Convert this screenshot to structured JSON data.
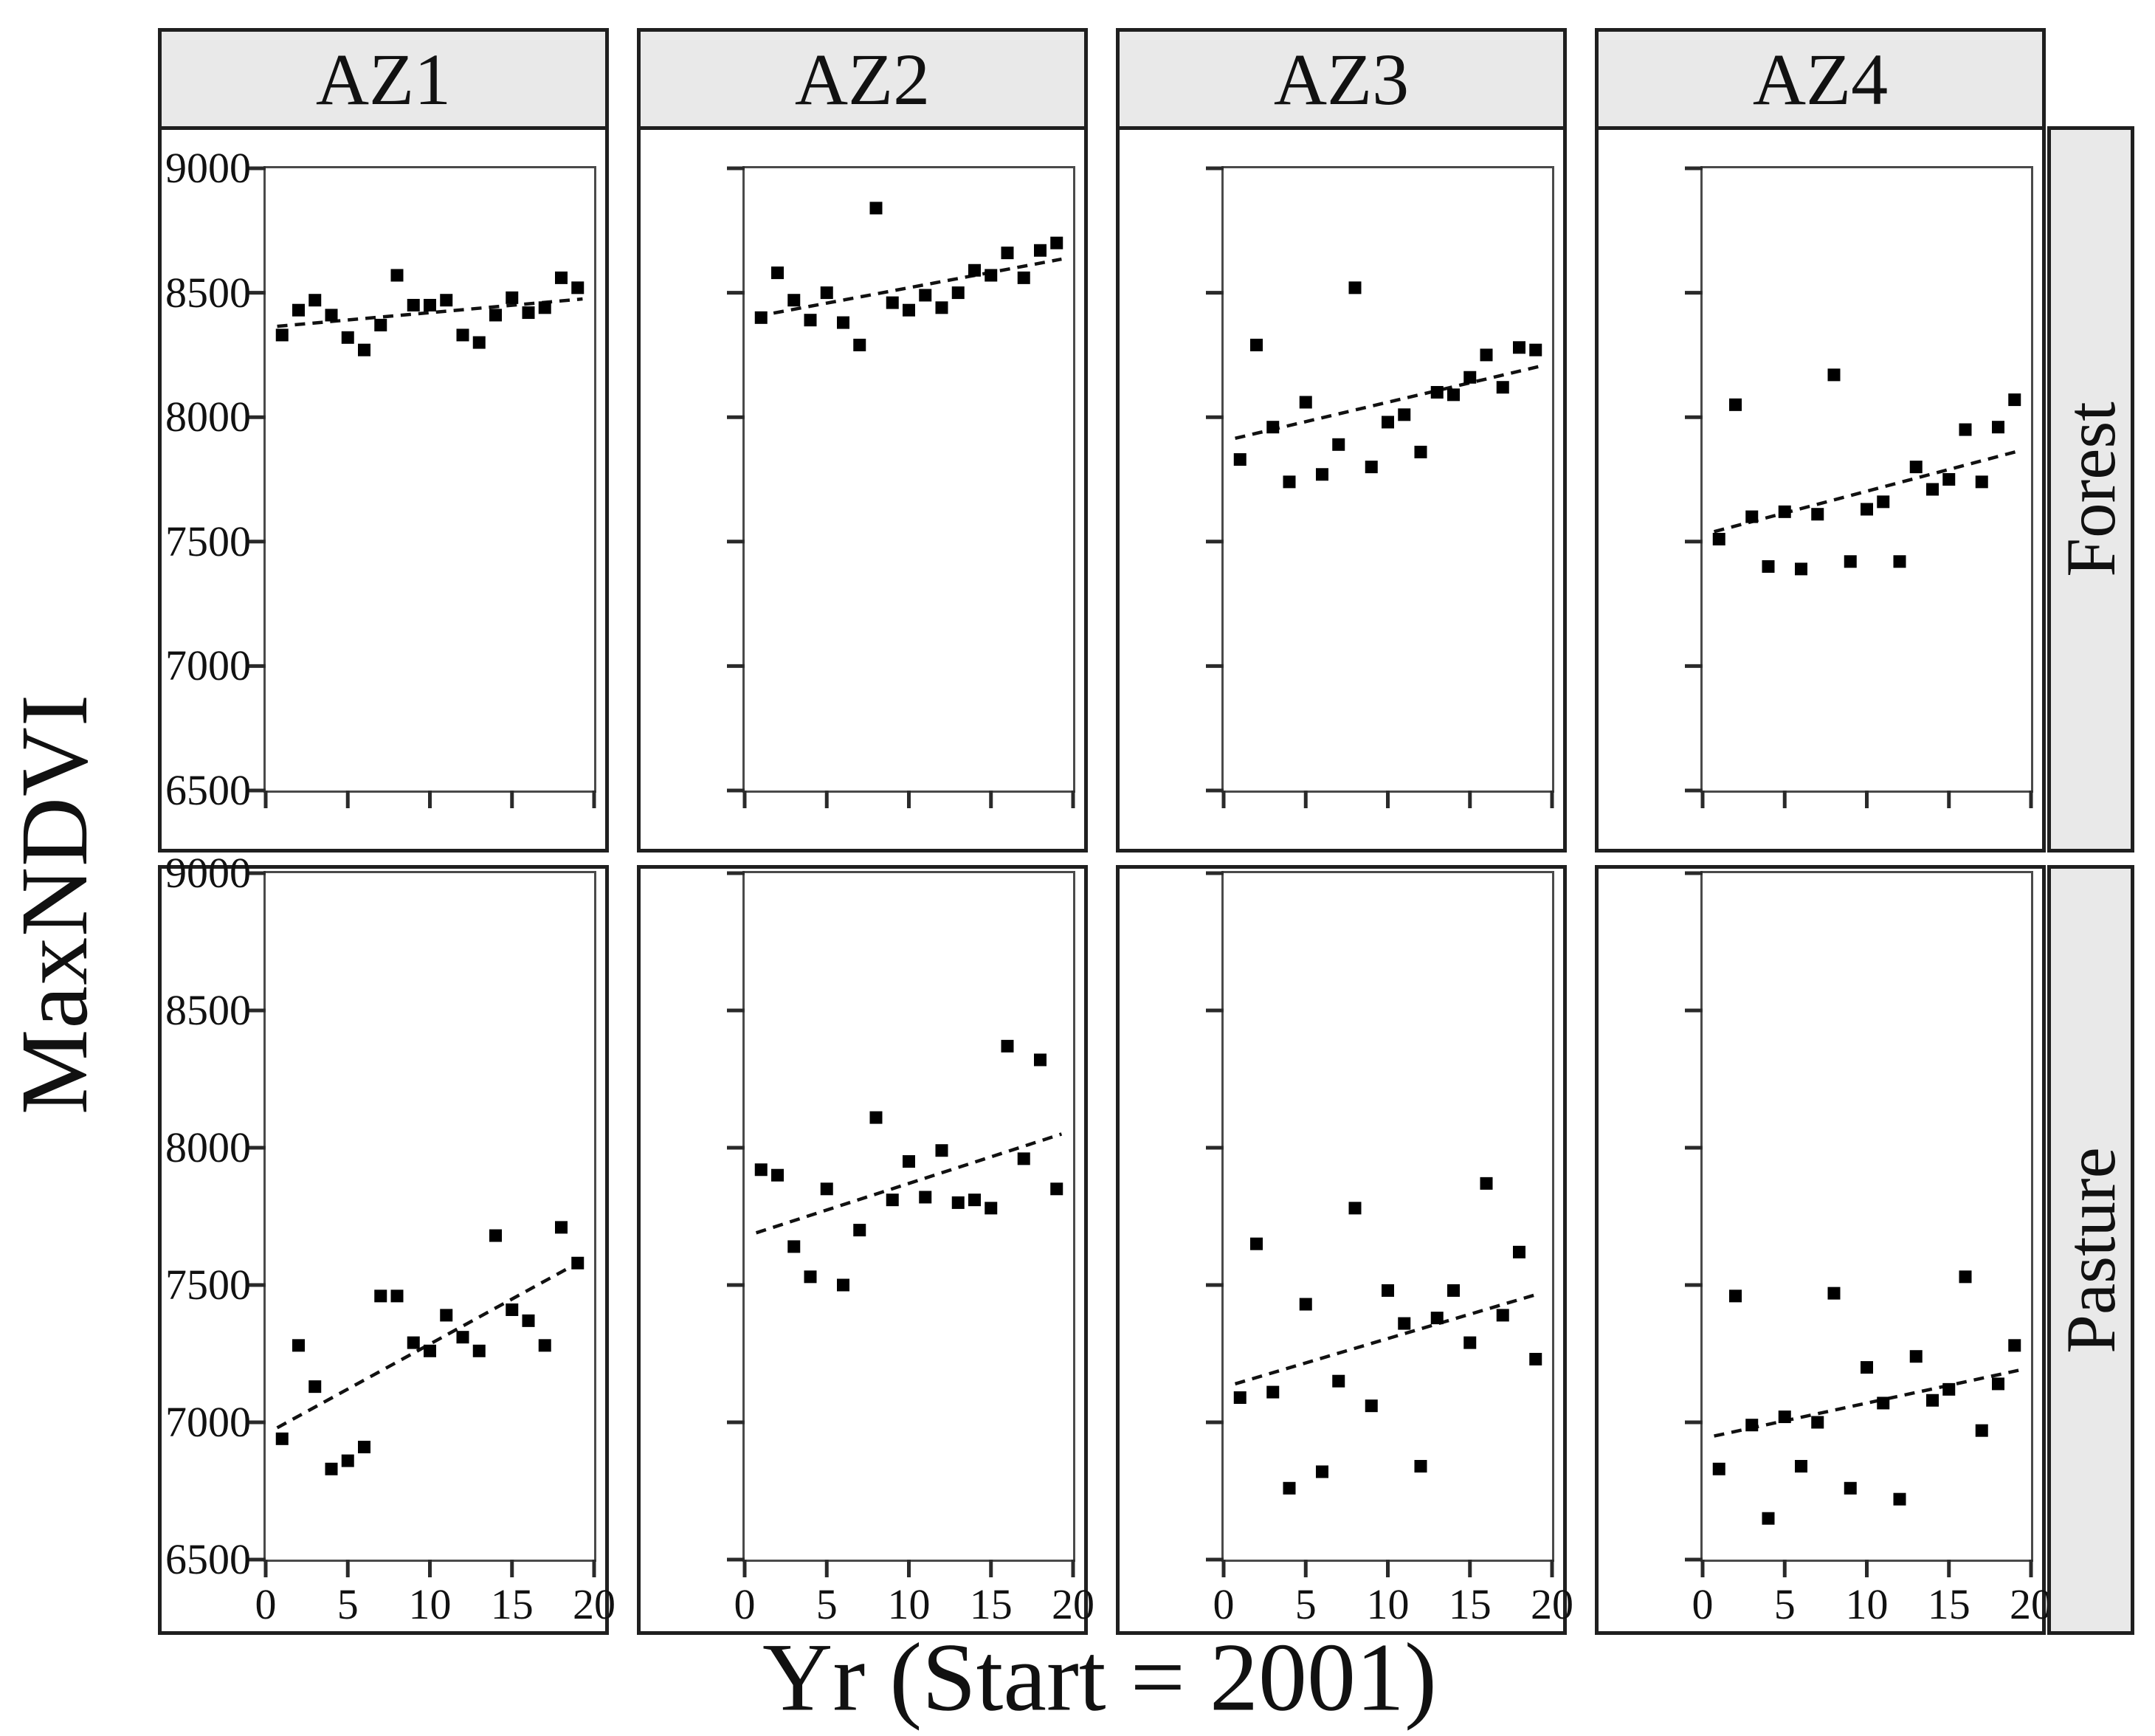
{
  "figure": {
    "y_axis_title": "MaxNDVI",
    "x_axis_title": "Yr (Start = 2001)",
    "columns": [
      "AZ1",
      "AZ2",
      "AZ3",
      "AZ4"
    ],
    "rows": [
      "Forest",
      "Pasture"
    ],
    "y_tick_labels": [
      "9000",
      "8500",
      "8000",
      "7500",
      "7000",
      "6500"
    ],
    "x_tick_labels": [
      "0",
      "5",
      "10",
      "15",
      "20"
    ],
    "colors": {
      "strip_bg": "#e9e9e9",
      "box_border": "#1f1f1f",
      "frame_border": "#4a4a4a",
      "point": "#000000",
      "trend_line": "#111111",
      "tick": "#2a2a2a"
    }
  },
  "chart_data": {
    "type": "scatter",
    "title": "",
    "xlabel": "Yr (Start = 2001)",
    "ylabel": "MaxNDVI",
    "x_range": [
      0,
      20
    ],
    "y_range": [
      6500,
      9000
    ],
    "x_ticks": [
      0,
      5,
      10,
      15,
      20
    ],
    "y_ticks": [
      9000,
      8500,
      8000,
      7500,
      7000,
      6500
    ],
    "grid": "off",
    "marker": "black-square",
    "trend_style": "dashed",
    "x_values": [
      1,
      2,
      3,
      4,
      5,
      6,
      7,
      8,
      9,
      10,
      11,
      12,
      13,
      14,
      15,
      16,
      17,
      18,
      19
    ],
    "panels": [
      {
        "row": "Forest",
        "column": "AZ1",
        "y_values": [
          8330,
          8430,
          8470,
          8410,
          8320,
          8270,
          8370,
          8570,
          8450,
          8450,
          8470,
          8330,
          8300,
          8410,
          8480,
          8420,
          8440,
          8560,
          8520
        ],
        "trend": {
          "x1": 0.7,
          "y1": 8365,
          "x2": 19.3,
          "y2": 8475
        }
      },
      {
        "row": "Forest",
        "column": "AZ2",
        "y_values": [
          8400,
          8580,
          8470,
          8390,
          8500,
          8380,
          8290,
          8840,
          8460,
          8430,
          8490,
          8440,
          8500,
          8590,
          8570,
          8660,
          8560,
          8670,
          8700
        ],
        "trend": {
          "x1": 0.7,
          "y1": 8405,
          "x2": 19.3,
          "y2": 8635
        }
      },
      {
        "row": "Forest",
        "column": "AZ3",
        "y_values": [
          7830,
          8290,
          7960,
          7740,
          8060,
          7770,
          7890,
          8520,
          7800,
          7980,
          8010,
          7860,
          8100,
          8090,
          8160,
          8250,
          8120,
          8280,
          8270
        ],
        "trend": {
          "x1": 0.7,
          "y1": 7915,
          "x2": 19.3,
          "y2": 8205
        }
      },
      {
        "row": "Forest",
        "column": "AZ4",
        "y_values": [
          7510,
          8050,
          7600,
          7400,
          7620,
          7390,
          7610,
          8170,
          7420,
          7630,
          7660,
          7420,
          7800,
          7710,
          7750,
          7950,
          7740,
          7960,
          8070
        ],
        "trend": {
          "x1": 0.7,
          "y1": 7540,
          "x2": 19.3,
          "y2": 7865
        }
      },
      {
        "row": "Pasture",
        "column": "AZ1",
        "y_values": [
          6940,
          7280,
          7130,
          6830,
          6860,
          6910,
          7460,
          7460,
          7290,
          7260,
          7390,
          7310,
          7260,
          7680,
          7410,
          7370,
          7280,
          7710,
          7580
        ],
        "trend": {
          "x1": 0.7,
          "y1": 6980,
          "x2": 19.3,
          "y2": 7590
        }
      },
      {
        "row": "Pasture",
        "column": "AZ2",
        "y_values": [
          7920,
          7900,
          7640,
          7530,
          7850,
          7500,
          7700,
          8110,
          7810,
          7950,
          7820,
          7990,
          7800,
          7810,
          7780,
          8370,
          7960,
          8320,
          7850
        ],
        "trend": {
          "x1": 0.7,
          "y1": 7690,
          "x2": 19.3,
          "y2": 8050
        }
      },
      {
        "row": "Pasture",
        "column": "AZ3",
        "y_values": [
          7090,
          7650,
          7110,
          6760,
          7430,
          6820,
          7150,
          7780,
          7060,
          7480,
          7360,
          6840,
          7380,
          7480,
          7290,
          7870,
          7390,
          7620,
          7230
        ],
        "trend": {
          "x1": 0.7,
          "y1": 7140,
          "x2": 19.3,
          "y2": 7470
        }
      },
      {
        "row": "Pasture",
        "column": "AZ4",
        "y_values": [
          6830,
          7460,
          6990,
          6650,
          7020,
          6840,
          7000,
          7470,
          6760,
          7200,
          7070,
          6720,
          7240,
          7080,
          7120,
          7530,
          6970,
          7140,
          7280
        ],
        "trend": {
          "x1": 0.7,
          "y1": 6950,
          "x2": 19.3,
          "y2": 7190
        }
      }
    ]
  }
}
